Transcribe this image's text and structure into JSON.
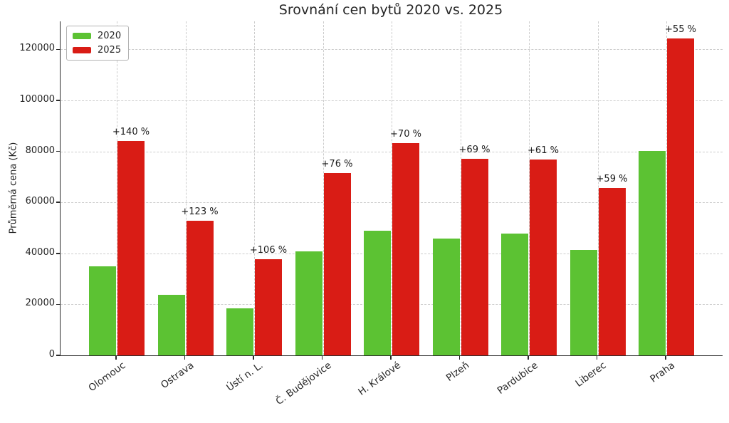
{
  "figure": {
    "title": "Srovnání cen bytů 2020 vs. 2025",
    "y_axis_label": "Průměrná cena (Kč)"
  },
  "legend": {
    "position": "upper-left",
    "items": [
      {
        "label": "2020",
        "color": "#5cc233"
      },
      {
        "label": "2025",
        "color": "#d91c15"
      }
    ]
  },
  "chart_data": {
    "type": "bar",
    "title": "Srovnání cen bytů 2020 vs. 2025",
    "xlabel": "",
    "ylabel": "Průměrná cena (Kč)",
    "categories": [
      "Olomouc",
      "Ostrava",
      "Ústí n. L.",
      "Č. Budějovice",
      "H. Králové",
      "Plzeň",
      "Pardubice",
      "Liberec",
      "Praha"
    ],
    "series": [
      {
        "name": "2020",
        "color": "#5cc233",
        "values": [
          35000,
          23700,
          18300,
          40700,
          49000,
          45700,
          47700,
          41300,
          80300
        ]
      },
      {
        "name": "2025",
        "color": "#d91c15",
        "values": [
          84000,
          52900,
          37700,
          71600,
          83300,
          77200,
          76800,
          65700,
          124400
        ]
      }
    ],
    "bar_annotations": [
      "+140 %",
      "+123 %",
      "+106 %",
      "+76 %",
      "+70 %",
      "+69 %",
      "+61 %",
      "+59 %",
      "+55 %"
    ],
    "yticks": [
      0,
      20000,
      40000,
      60000,
      80000,
      100000,
      120000
    ],
    "ylim": [
      0,
      131000
    ],
    "grid": {
      "horizontal": true,
      "vertical": true,
      "style": "dashed",
      "color": "#cccccc"
    },
    "legend_position": "upper left"
  },
  "style": {
    "background": "#ffffff",
    "text_color": "#262626",
    "spine_color": "#2b2b2b",
    "grid_color": "#cccccc"
  }
}
